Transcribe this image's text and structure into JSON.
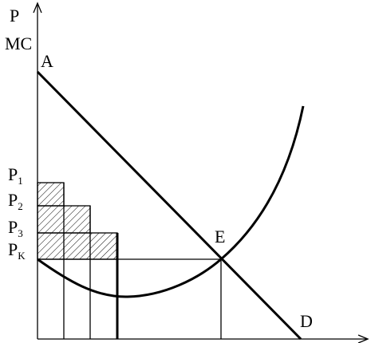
{
  "axis_label": {
    "line1": "P",
    "line2": "MC"
  },
  "points": {
    "a": "A",
    "e": "E",
    "d": "D"
  },
  "price_levels": [
    {
      "symbol": "P",
      "sub": "1"
    },
    {
      "symbol": "P",
      "sub": "2"
    },
    {
      "symbol": "P",
      "sub": "3"
    },
    {
      "symbol": "P",
      "sub": "K"
    }
  ]
}
